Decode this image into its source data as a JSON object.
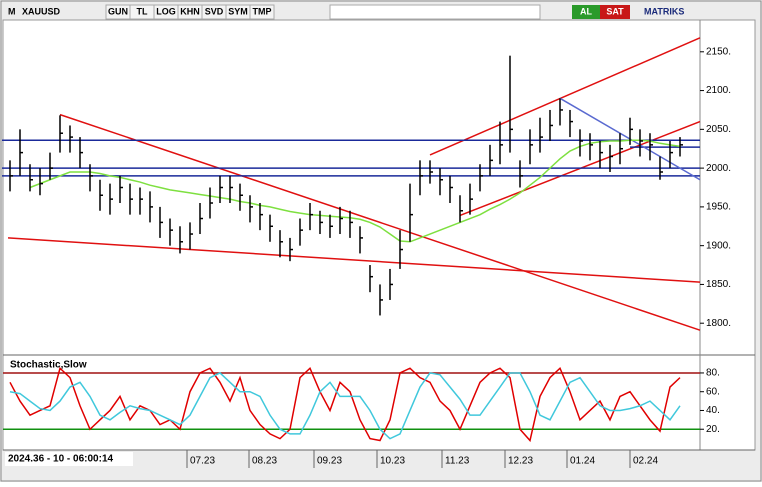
{
  "toolbar": {
    "logo": "M",
    "symbol": "XAUUSD",
    "buttons": [
      "GUN",
      "TL",
      "LOG",
      "KHN",
      "SVD",
      "SYM",
      "TMP"
    ],
    "buy": "AL",
    "sell": "SAT",
    "brand": "MATRIKS"
  },
  "cursor_label": "2024.36 - 10 - 06:00:14",
  "chart_data": [
    {
      "type": "ohlc",
      "xlim": [
        -1,
        69
      ],
      "ylim": [
        1759,
        2191
      ],
      "yticks": [
        {
          "value": 2150,
          "label": "2150."
        },
        {
          "value": 2100,
          "label": "2100."
        },
        {
          "value": 2050,
          "label": "2050."
        },
        {
          "value": 2000,
          "label": "2000."
        },
        {
          "value": 1950,
          "label": "1950."
        },
        {
          "value": 1900,
          "label": "1900."
        },
        {
          "value": 1850,
          "label": "1850."
        },
        {
          "value": 1800,
          "label": "1800."
        }
      ],
      "close": [
        1990,
        2020,
        1985,
        1980,
        2000,
        2045,
        2040,
        2020,
        1990,
        1965,
        1960,
        1975,
        1960,
        1960,
        1950,
        1930,
        1920,
        1905,
        1915,
        1935,
        1955,
        1975,
        1975,
        1965,
        1950,
        1940,
        1925,
        1905,
        1895,
        1920,
        1940,
        1930,
        1925,
        1935,
        1930,
        1910,
        1860,
        1830,
        1850,
        1895,
        1940,
        1990,
        1995,
        1985,
        1975,
        1945,
        1960,
        1990,
        2010,
        2030,
        2050,
        1990,
        2030,
        2040,
        2055,
        2075,
        2060,
        2035,
        2030,
        2020,
        2015,
        2025,
        2050,
        2035,
        2030,
        1995,
        2020,
        2030
      ],
      "high": [
        2010,
        2050,
        2005,
        2000,
        2020,
        2068,
        2055,
        2040,
        2005,
        1985,
        1980,
        1990,
        1980,
        1975,
        1970,
        1950,
        1935,
        1925,
        1930,
        1955,
        1975,
        1990,
        1990,
        1980,
        1965,
        1955,
        1940,
        1920,
        1910,
        1935,
        1955,
        1945,
        1940,
        1950,
        1945,
        1925,
        1875,
        1850,
        1870,
        1920,
        1980,
        2010,
        2010,
        2000,
        1990,
        1965,
        1980,
        2005,
        2030,
        2060,
        2145,
        2010,
        2050,
        2065,
        2075,
        2090,
        2075,
        2050,
        2045,
        2035,
        2030,
        2045,
        2065,
        2050,
        2045,
        2015,
        2035,
        2040
      ],
      "low": [
        1970,
        1990,
        1970,
        1965,
        1985,
        2020,
        2020,
        2000,
        1970,
        1945,
        1940,
        1955,
        1940,
        1940,
        1930,
        1910,
        1900,
        1890,
        1895,
        1915,
        1935,
        1955,
        1955,
        1945,
        1930,
        1920,
        1905,
        1885,
        1880,
        1900,
        1920,
        1915,
        1910,
        1915,
        1910,
        1890,
        1840,
        1810,
        1830,
        1870,
        1905,
        1965,
        1980,
        1965,
        1955,
        1930,
        1940,
        1970,
        1990,
        2005,
        2020,
        1975,
        2005,
        2020,
        2035,
        2055,
        2040,
        2015,
        2010,
        2000,
        1995,
        2005,
        2030,
        2015,
        2010,
        1985,
        2000,
        2015
      ],
      "bar_color": "#000000",
      "series": [
        {
          "color": "#7ee040",
          "values": [
            null,
            null,
            1975,
            1980,
            1985,
            1990,
            1995,
            1995,
            1995,
            1993,
            1990,
            1988,
            1985,
            1982,
            1978,
            1975,
            1972,
            1970,
            1968,
            1966,
            1964,
            1962,
            1960,
            1957,
            1955,
            1952,
            1950,
            1947,
            1944,
            1942,
            1940,
            1939,
            1938,
            1937,
            1936,
            1934,
            1930,
            1924,
            1915,
            1906,
            1905,
            1910,
            1915,
            1920,
            1925,
            1930,
            1935,
            1940,
            1947,
            1953,
            1960,
            1968,
            1978,
            1988,
            2000,
            2012,
            2022,
            2028,
            2032,
            2034,
            2035,
            2035,
            2036,
            2036,
            2035,
            2032,
            2030,
            2028
          ]
        }
      ],
      "trendlines": [
        {
          "color": "#e01010",
          "x": [
            5,
            69
          ],
          "y": [
            2069,
            1791
          ]
        },
        {
          "color": "#e01010",
          "x": [
            -0.2,
            69
          ],
          "y": [
            1910,
            1853
          ]
        },
        {
          "color": "#e01010",
          "x": [
            42,
            69
          ],
          "y": [
            2017,
            2168
          ]
        },
        {
          "color": "#e01010",
          "x": [
            45,
            69
          ],
          "y": [
            1939,
            2060
          ]
        },
        {
          "color": "#1a2a9a",
          "x": [
            -0.8,
            69
          ],
          "y": [
            2036,
            2036
          ]
        },
        {
          "color": "#1a2a9a",
          "x": [
            -0.8,
            69
          ],
          "y": [
            2000,
            2000
          ]
        },
        {
          "color": "#1a2a9a",
          "x": [
            -0.8,
            69
          ],
          "y": [
            1990,
            1990
          ]
        },
        {
          "color": "#1a2a9a",
          "x": [
            62,
            69
          ],
          "y": [
            2027,
            2027
          ]
        },
        {
          "color": "#5a6ad0",
          "x": [
            55,
            69
          ],
          "y": [
            2090,
            1985
          ]
        }
      ],
      "xticks": [
        {
          "value": 17.7,
          "label": "07.23"
        },
        {
          "value": 23.9,
          "label": "08.23"
        },
        {
          "value": 30.4,
          "label": "09.23"
        },
        {
          "value": 36.7,
          "label": "10.23"
        },
        {
          "value": 43.2,
          "label": "11.23"
        },
        {
          "value": 49.5,
          "label": "12.23"
        },
        {
          "value": 55.7,
          "label": "01.24"
        },
        {
          "value": 62.0,
          "label": "02.24"
        }
      ]
    },
    {
      "type": "line",
      "title": "Stochastic,Slow",
      "xlim": [
        -1,
        69
      ],
      "ylim": [
        0,
        97
      ],
      "yticks": [
        {
          "value": 80,
          "label": "80."
        },
        {
          "value": 60,
          "label": "60."
        },
        {
          "value": 40,
          "label": "40."
        },
        {
          "value": 20,
          "label": "20."
        }
      ],
      "levels": [
        {
          "value": 80,
          "color": "#a01010"
        },
        {
          "value": 20,
          "color": "#109010"
        }
      ],
      "series": [
        {
          "color": "#e00000",
          "values": [
            70,
            50,
            35,
            40,
            45,
            85,
            75,
            45,
            20,
            30,
            40,
            55,
            30,
            45,
            40,
            25,
            30,
            20,
            60,
            80,
            85,
            70,
            50,
            75,
            40,
            25,
            15,
            10,
            20,
            75,
            85,
            60,
            40,
            70,
            60,
            30,
            10,
            8,
            30,
            80,
            85,
            75,
            70,
            50,
            40,
            20,
            45,
            70,
            80,
            85,
            75,
            20,
            8,
            55,
            75,
            85,
            60,
            30,
            40,
            50,
            30,
            55,
            60,
            45,
            30,
            18,
            65,
            75
          ]
        },
        {
          "color": "#40c8dc",
          "values": [
            60,
            58,
            50,
            42,
            40,
            50,
            65,
            70,
            55,
            35,
            30,
            38,
            45,
            42,
            40,
            35,
            30,
            25,
            35,
            55,
            75,
            80,
            70,
            60,
            60,
            55,
            35,
            20,
            15,
            15,
            35,
            60,
            70,
            55,
            55,
            55,
            40,
            20,
            10,
            15,
            40,
            65,
            80,
            78,
            65,
            52,
            35,
            35,
            50,
            65,
            80,
            80,
            60,
            35,
            30,
            50,
            70,
            75,
            60,
            45,
            40,
            40,
            42,
            45,
            50,
            40,
            30,
            45
          ]
        }
      ]
    }
  ]
}
